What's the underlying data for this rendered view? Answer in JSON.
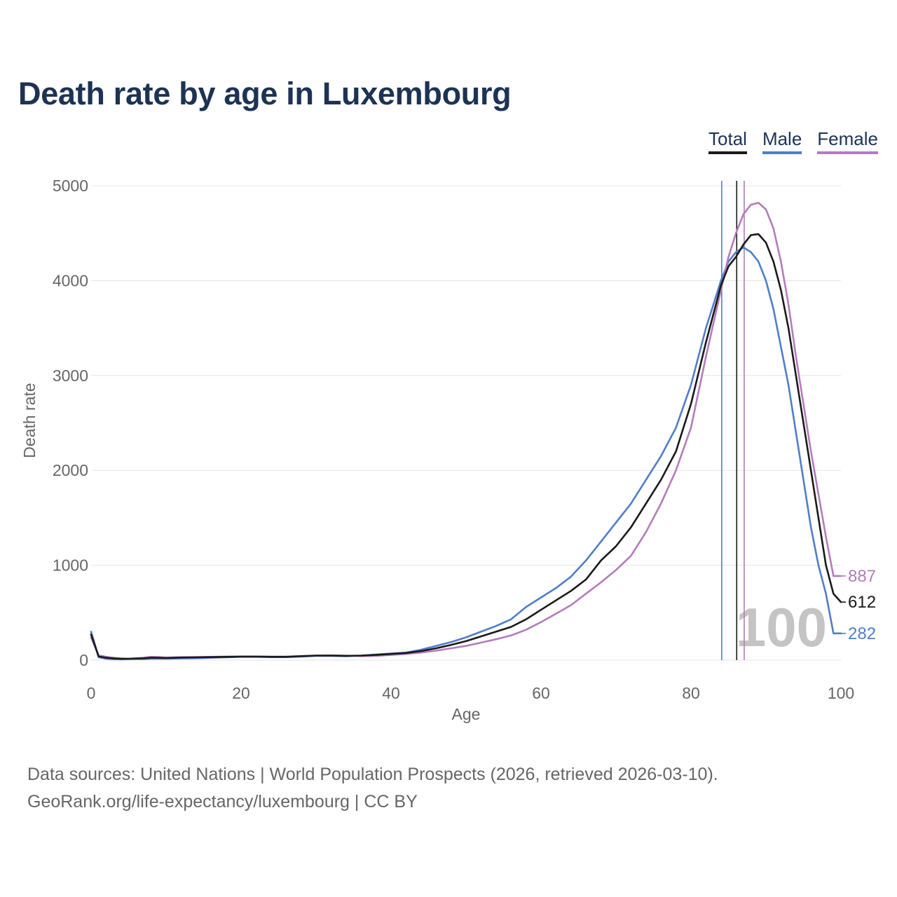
{
  "title": "Death rate by age in Luxembourg",
  "legend": [
    {
      "label": "Total",
      "color": "#1a1a1a"
    },
    {
      "label": "Male",
      "color": "#4f7ec9"
    },
    {
      "label": "Female",
      "color": "#b47cbb"
    }
  ],
  "footer": {
    "line1": "Data sources: United Nations | World Population Prospects (2026, retrieved 2026-03-10).",
    "line2": "GeoRank.org/life-expectancy/luxembourg | CC BY"
  },
  "chart_data": {
    "type": "line",
    "title": "Death rate by age in Luxembourg",
    "xlabel": "Age",
    "ylabel": "Death rate",
    "xlim": [
      0,
      100
    ],
    "ylim": [
      0,
      5000
    ],
    "xticks": [
      0,
      20,
      40,
      60,
      80,
      100
    ],
    "yticks": [
      0,
      1000,
      2000,
      3000,
      4000,
      5000
    ],
    "grid": true,
    "legend_position": "top-right",
    "highlight_label": "100",
    "reference_lines": [
      {
        "series": "Male",
        "x": 84.1
      },
      {
        "series": "Total",
        "x": 86.1
      },
      {
        "series": "Female",
        "x": 87.1
      }
    ],
    "series": [
      {
        "name": "Total",
        "color": "#1a1a1a",
        "end_label": "612",
        "x": [
          0,
          1,
          2,
          3,
          4,
          5,
          6,
          7,
          8,
          9,
          10,
          12,
          14,
          16,
          18,
          20,
          22,
          24,
          26,
          28,
          30,
          32,
          34,
          36,
          38,
          40,
          42,
          44,
          46,
          48,
          50,
          52,
          54,
          56,
          58,
          60,
          62,
          64,
          66,
          68,
          70,
          72,
          74,
          76,
          78,
          80,
          82,
          84,
          85,
          86,
          87,
          88,
          89,
          90,
          91,
          92,
          93,
          94,
          95,
          96,
          97,
          98,
          99,
          100
        ],
        "values": [
          270,
          40,
          25,
          18,
          15,
          15,
          18,
          20,
          25,
          25,
          22,
          28,
          30,
          32,
          35,
          38,
          38,
          35,
          35,
          42,
          48,
          48,
          45,
          48,
          55,
          65,
          75,
          95,
          125,
          160,
          200,
          250,
          300,
          350,
          430,
          530,
          630,
          730,
          850,
          1050,
          1200,
          1400,
          1650,
          1900,
          2200,
          2700,
          3350,
          3950,
          4150,
          4250,
          4380,
          4480,
          4490,
          4400,
          4200,
          3900,
          3500,
          3000,
          2500,
          2000,
          1500,
          1000,
          700,
          612
        ]
      },
      {
        "name": "Male",
        "color": "#4f7ec9",
        "end_label": "282",
        "x": [
          0,
          1,
          2,
          3,
          4,
          5,
          6,
          7,
          8,
          9,
          10,
          12,
          14,
          16,
          18,
          20,
          22,
          24,
          26,
          28,
          30,
          32,
          34,
          36,
          38,
          40,
          42,
          44,
          46,
          48,
          50,
          52,
          54,
          56,
          58,
          60,
          62,
          64,
          66,
          68,
          70,
          72,
          74,
          76,
          78,
          80,
          82,
          84,
          85,
          86,
          87,
          88,
          89,
          90,
          91,
          92,
          93,
          94,
          95,
          96,
          97,
          98,
          99,
          100
        ],
        "values": [
          300,
          30,
          15,
          10,
          8,
          10,
          12,
          12,
          15,
          15,
          15,
          18,
          20,
          25,
          30,
          35,
          35,
          32,
          32,
          38,
          45,
          45,
          42,
          48,
          60,
          70,
          80,
          110,
          150,
          190,
          240,
          300,
          360,
          430,
          560,
          660,
          760,
          880,
          1050,
          1250,
          1450,
          1650,
          1900,
          2150,
          2450,
          2900,
          3500,
          4000,
          4200,
          4300,
          4350,
          4300,
          4200,
          4000,
          3700,
          3300,
          2900,
          2400,
          1900,
          1400,
          1000,
          700,
          282,
          282
        ]
      },
      {
        "name": "Female",
        "color": "#b47cbb",
        "end_label": "887",
        "x": [
          0,
          1,
          2,
          3,
          4,
          5,
          6,
          7,
          8,
          9,
          10,
          12,
          14,
          16,
          18,
          20,
          22,
          24,
          26,
          28,
          30,
          32,
          34,
          36,
          38,
          40,
          42,
          44,
          46,
          48,
          50,
          52,
          54,
          56,
          58,
          60,
          62,
          64,
          66,
          68,
          70,
          72,
          74,
          76,
          78,
          80,
          82,
          84,
          85,
          86,
          87,
          88,
          89,
          90,
          91,
          92,
          93,
          94,
          95,
          96,
          97,
          98,
          99,
          100
        ],
        "values": [
          240,
          50,
          35,
          25,
          18,
          15,
          18,
          25,
          35,
          32,
          28,
          30,
          32,
          35,
          38,
          38,
          38,
          38,
          38,
          42,
          48,
          50,
          48,
          42,
          45,
          55,
          65,
          80,
          100,
          125,
          150,
          185,
          220,
          260,
          320,
          400,
          490,
          580,
          700,
          820,
          950,
          1100,
          1350,
          1650,
          2000,
          2450,
          3200,
          3900,
          4250,
          4500,
          4700,
          4800,
          4820,
          4750,
          4550,
          4200,
          3750,
          3200,
          2700,
          2200,
          1750,
          1300,
          887,
          887
        ]
      }
    ]
  }
}
